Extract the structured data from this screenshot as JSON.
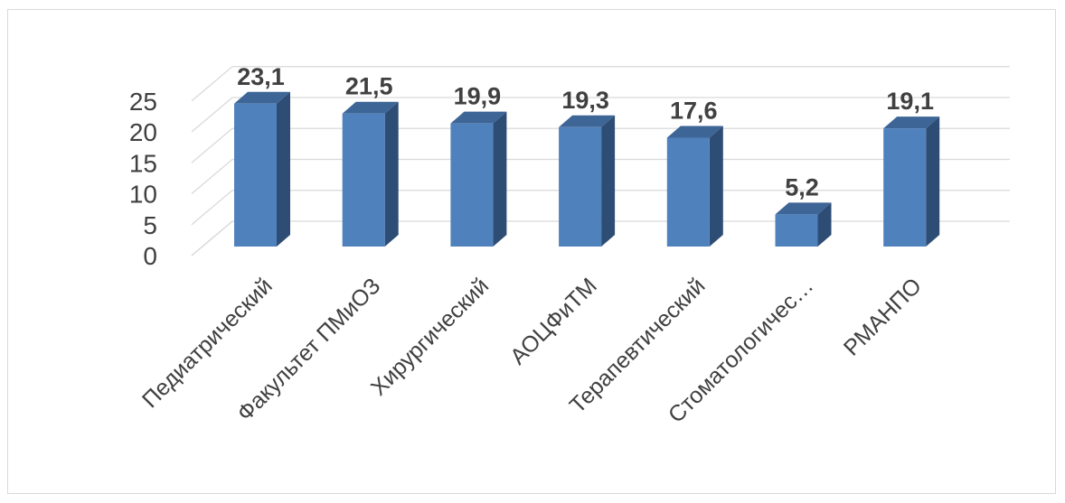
{
  "chart_data": {
    "type": "bar",
    "categories": [
      "Педиатрический",
      "Факультет ПМиОЗ",
      "Хирургический",
      "АОЦФиТМ",
      "Терапевтический",
      "Стоматологичес…",
      "РМАНПО"
    ],
    "values": [
      23.1,
      21.5,
      19.9,
      19.3,
      17.6,
      5.2,
      19.1
    ],
    "value_labels": [
      "23,1",
      "21,5",
      "19,9",
      "19,3",
      "17,6",
      "5,2",
      "19,1"
    ],
    "y_ticks": [
      "0",
      "5",
      "10",
      "15",
      "20",
      "25"
    ],
    "ylim": [
      0,
      25
    ],
    "grid": true,
    "legend": "none",
    "title": "",
    "xlabel": "",
    "ylabel": "",
    "colors": {
      "front": "#4f81bd",
      "side": "#2e4d75",
      "top": "#3d6596",
      "grid": "#d9d9d9",
      "text": "#404040"
    }
  }
}
